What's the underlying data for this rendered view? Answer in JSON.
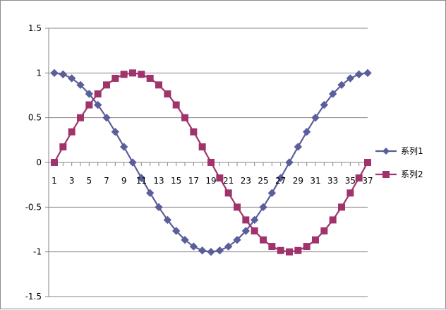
{
  "chart_data": {
    "type": "line",
    "x": [
      1,
      2,
      3,
      4,
      5,
      6,
      7,
      8,
      9,
      10,
      11,
      12,
      13,
      14,
      15,
      16,
      17,
      18,
      19,
      20,
      21,
      22,
      23,
      24,
      25,
      26,
      27,
      28,
      29,
      30,
      31,
      32,
      33,
      34,
      35,
      36,
      37
    ],
    "x_tick_labels": [
      "1",
      "3",
      "5",
      "7",
      "9",
      "11",
      "13",
      "15",
      "17",
      "19",
      "21",
      "23",
      "25",
      "27",
      "29",
      "31",
      "33",
      "35",
      "37"
    ],
    "y_tick_labels": [
      "1.5",
      "1",
      "0.5",
      "0",
      "-0.5",
      "-1",
      "-1.5"
    ],
    "ylim": [
      -1.5,
      1.5
    ],
    "grid": true,
    "legend_position": "right",
    "series": [
      {
        "name": "系列1",
        "color": "#5B5E9B",
        "marker": "diamond",
        "values": [
          1.0,
          0.985,
          0.94,
          0.866,
          0.766,
          0.643,
          0.5,
          0.342,
          0.174,
          0.0,
          -0.174,
          -0.342,
          -0.5,
          -0.643,
          -0.766,
          -0.866,
          -0.94,
          -0.985,
          -1.0,
          -0.985,
          -0.94,
          -0.866,
          -0.766,
          -0.643,
          -0.5,
          -0.342,
          -0.174,
          0.0,
          0.174,
          0.342,
          0.5,
          0.643,
          0.766,
          0.866,
          0.94,
          0.985,
          1.0
        ]
      },
      {
        "name": "系列2",
        "color": "#A0336B",
        "marker": "square",
        "values": [
          0.0,
          0.174,
          0.342,
          0.5,
          0.643,
          0.766,
          0.866,
          0.94,
          0.985,
          1.0,
          0.985,
          0.94,
          0.866,
          0.766,
          0.643,
          0.5,
          0.342,
          0.174,
          0.0,
          -0.174,
          -0.342,
          -0.5,
          -0.643,
          -0.766,
          -0.866,
          -0.94,
          -0.985,
          -1.0,
          -0.985,
          -0.94,
          -0.866,
          -0.766,
          -0.643,
          -0.5,
          -0.342,
          -0.174,
          0.0
        ]
      }
    ]
  }
}
